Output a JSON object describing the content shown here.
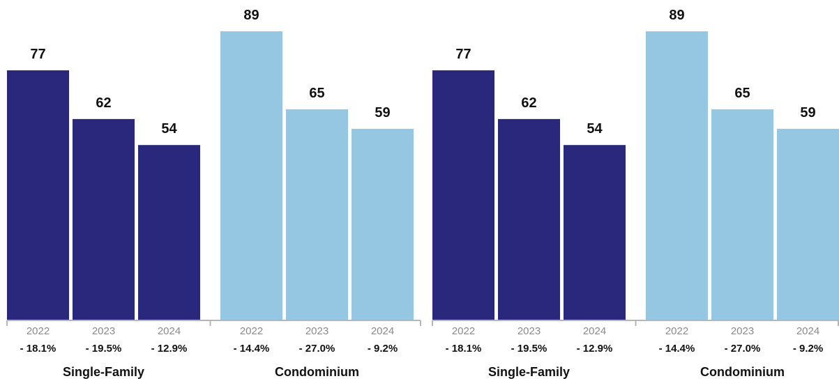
{
  "chart_data": [
    {
      "type": "bar",
      "groups": [
        {
          "name": "Single-Family",
          "color": "#29287c",
          "categories": [
            "2022",
            "2023",
            "2024"
          ],
          "values": [
            77,
            62,
            54
          ],
          "changes": [
            "- 18.1%",
            "- 19.5%",
            "- 12.9%"
          ]
        },
        {
          "name": "Condominium",
          "color": "#95c7e3",
          "categories": [
            "2022",
            "2023",
            "2024"
          ],
          "values": [
            89,
            65,
            59
          ],
          "changes": [
            "- 14.4%",
            "- 27.0%",
            "- 9.2%"
          ]
        }
      ],
      "ylim": [
        0,
        89
      ],
      "grid": false,
      "data_labels": true
    },
    {
      "type": "bar",
      "groups": [
        {
          "name": "Single-Family",
          "color": "#29287c",
          "categories": [
            "2022",
            "2023",
            "2024"
          ],
          "values": [
            77,
            62,
            54
          ],
          "changes": [
            "- 18.1%",
            "- 19.5%",
            "- 12.9%"
          ]
        },
        {
          "name": "Condominium",
          "color": "#95c7e3",
          "categories": [
            "2022",
            "2023",
            "2024"
          ],
          "values": [
            89,
            65,
            59
          ],
          "changes": [
            "- 14.4%",
            "- 27.0%",
            "- 9.2%"
          ]
        }
      ],
      "ylim": [
        0,
        89
      ],
      "grid": false,
      "data_labels": true
    }
  ]
}
